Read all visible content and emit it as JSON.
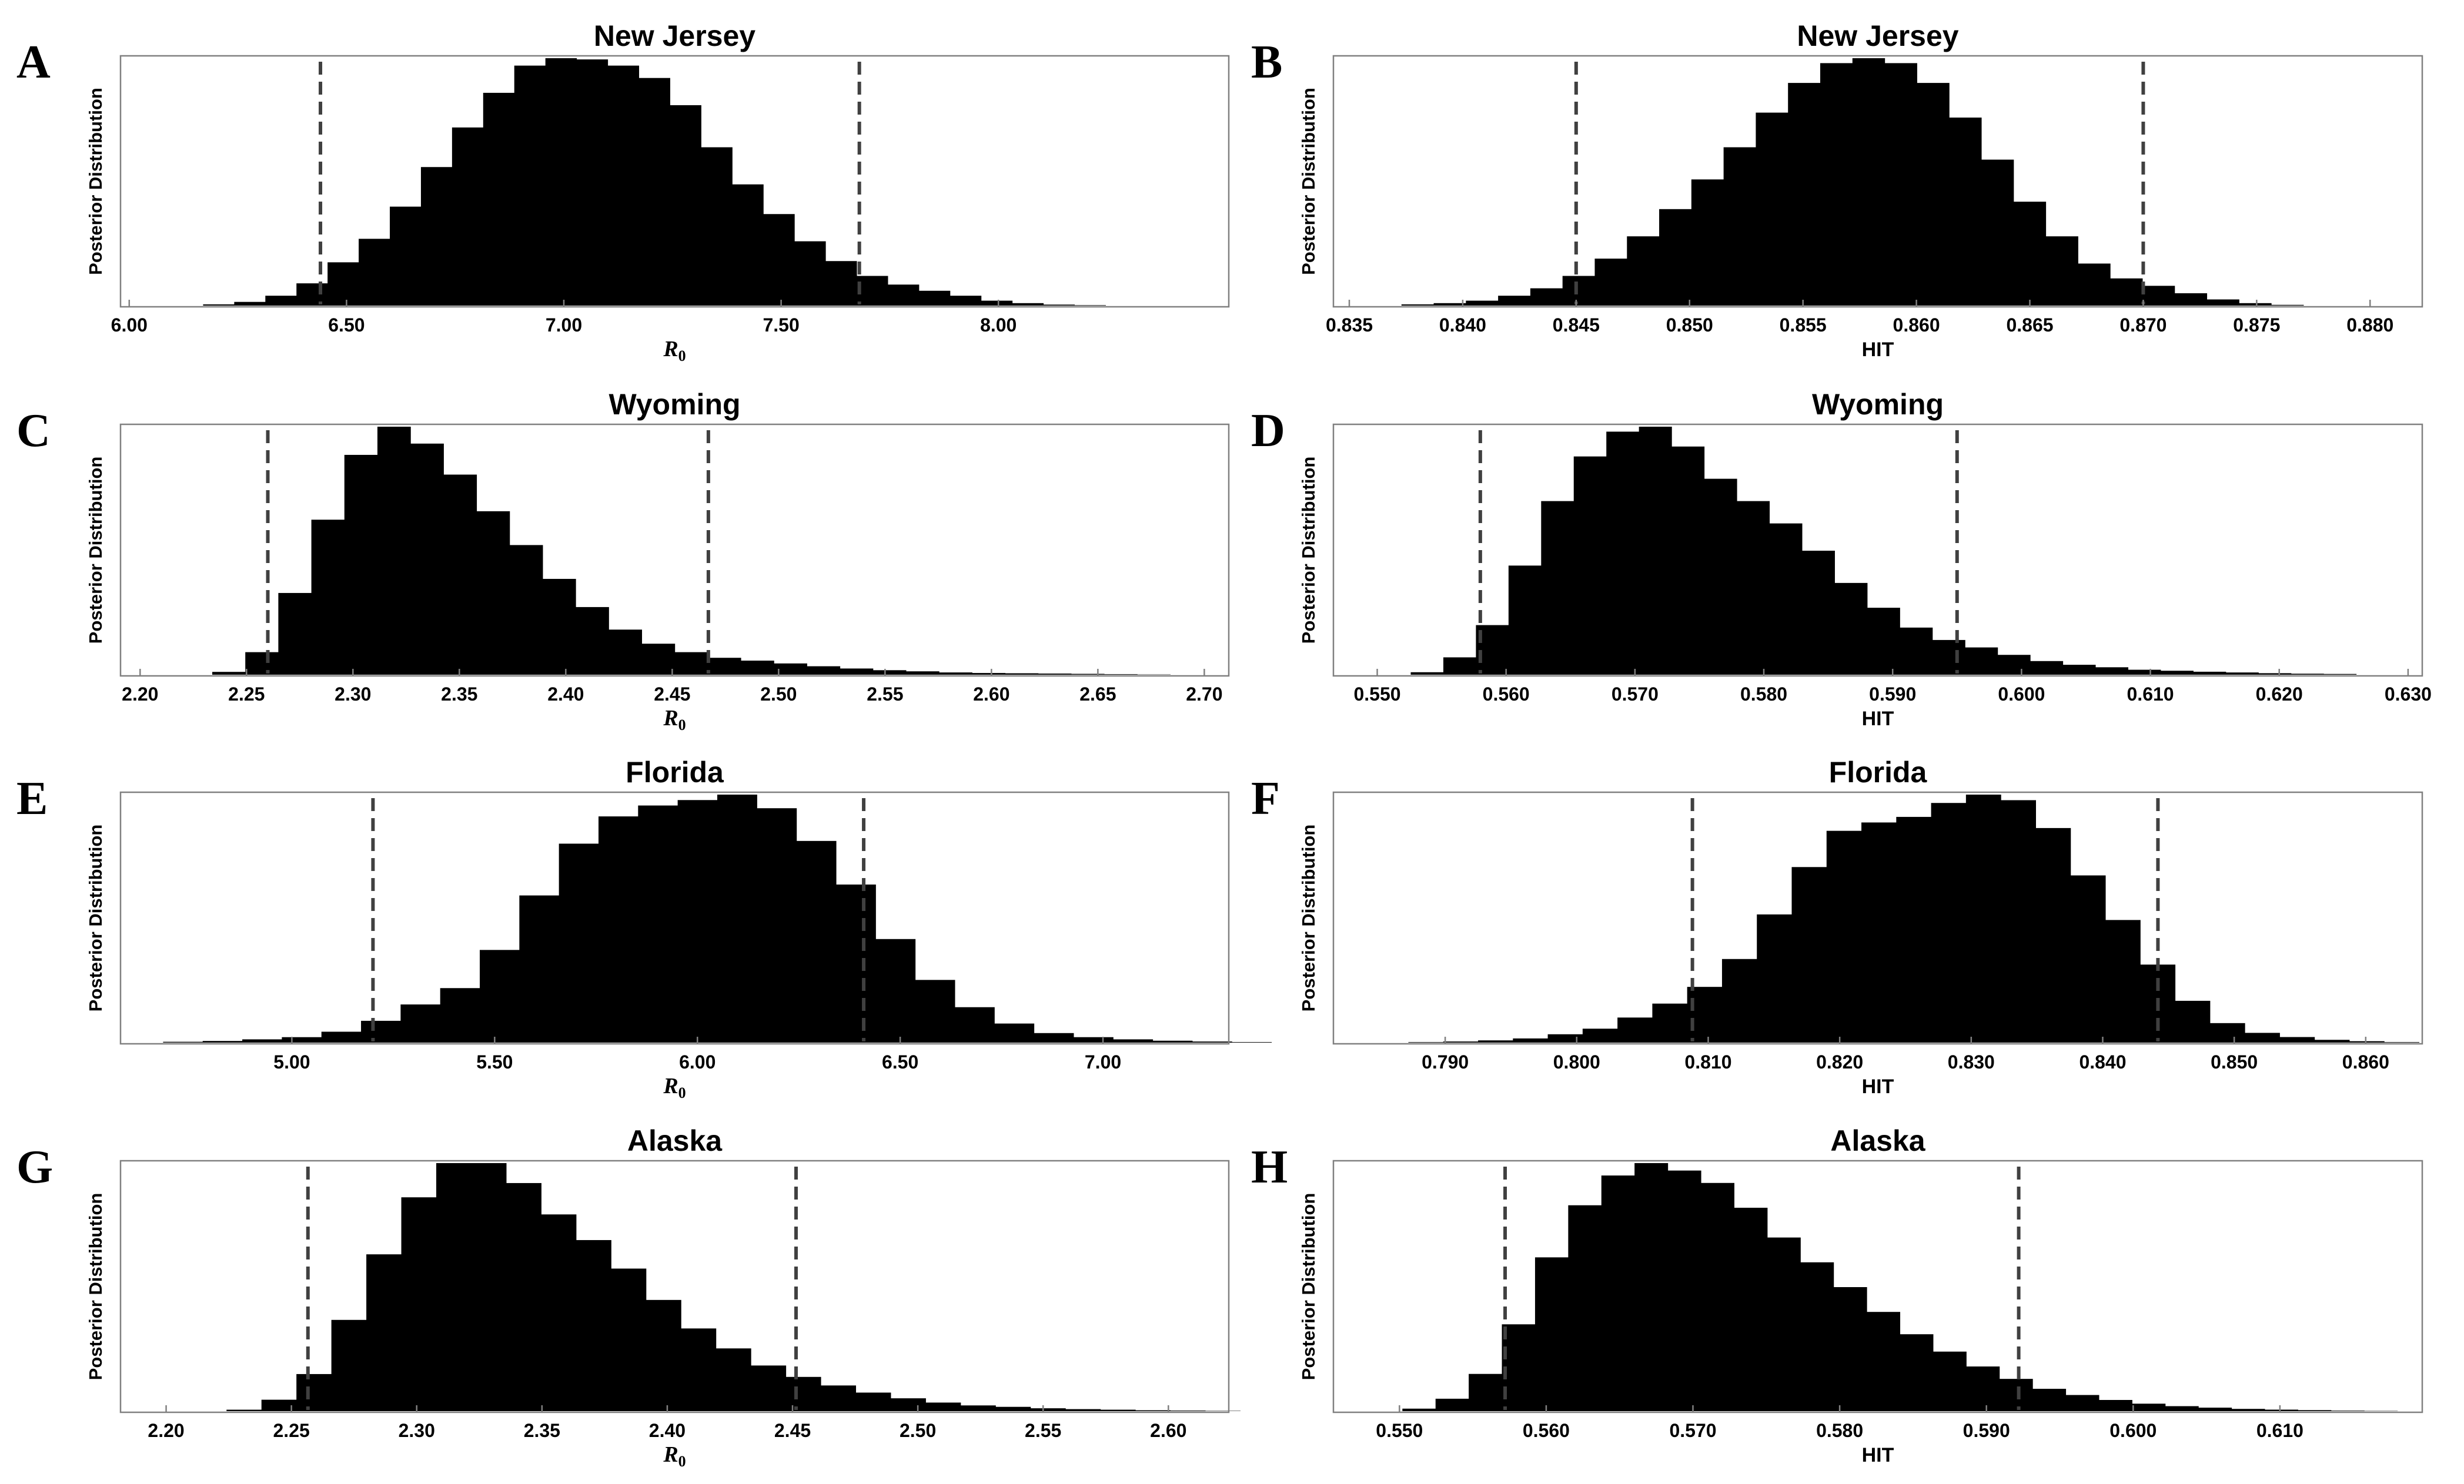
{
  "chart_data": [
    {
      "type": "bar",
      "panel": "A",
      "title": "New Jersey",
      "xlabel": "R",
      "xlabel_sub": "0",
      "ylabel": "Posterior Distribution",
      "xlim": [
        5.98,
        8.53
      ],
      "xticks": [
        6.0,
        6.5,
        7.0,
        7.5,
        8.0
      ],
      "xtick_labels": [
        "6.00",
        "6.50",
        "7.00",
        "7.50",
        "8.00"
      ],
      "ci": [
        6.44,
        7.68
      ],
      "bin_start": 6.17,
      "bin_width": 0.0716,
      "values": [
        0.005,
        0.015,
        0.04,
        0.09,
        0.175,
        0.27,
        0.4,
        0.56,
        0.72,
        0.86,
        0.97,
        1.0,
        0.995,
        0.97,
        0.92,
        0.81,
        0.64,
        0.49,
        0.37,
        0.26,
        0.18,
        0.12,
        0.085,
        0.06,
        0.04,
        0.02,
        0.01,
        0.004,
        0.002
      ]
    },
    {
      "type": "bar",
      "panel": "B",
      "title": "New Jersey",
      "xlabel": "HIT",
      "xlabel_sub": "",
      "ylabel": "Posterior Distribution",
      "xlim": [
        0.8343,
        0.8823
      ],
      "xticks": [
        0.835,
        0.84,
        0.845,
        0.85,
        0.855,
        0.86,
        0.865,
        0.87,
        0.875,
        0.88
      ],
      "xtick_labels": [
        "0.835",
        "0.840",
        "0.845",
        "0.850",
        "0.855",
        "0.860",
        "0.865",
        "0.870",
        "0.875",
        "0.880"
      ],
      "ci": [
        0.845,
        0.87
      ],
      "bin_start": 0.8373,
      "bin_width": 0.00142,
      "values": [
        0.005,
        0.01,
        0.02,
        0.04,
        0.07,
        0.12,
        0.19,
        0.28,
        0.39,
        0.51,
        0.64,
        0.78,
        0.9,
        0.98,
        1.0,
        0.98,
        0.9,
        0.76,
        0.59,
        0.42,
        0.28,
        0.17,
        0.11,
        0.08,
        0.05,
        0.025,
        0.01,
        0.003
      ]
    },
    {
      "type": "bar",
      "panel": "C",
      "title": "Wyoming",
      "xlabel": "R",
      "xlabel_sub": "0",
      "ylabel": "Posterior Distribution",
      "xlim": [
        2.1908,
        2.7115
      ],
      "xticks": [
        2.2,
        2.25,
        2.3,
        2.35,
        2.4,
        2.45,
        2.5,
        2.55,
        2.6,
        2.65,
        2.7
      ],
      "xtick_labels": [
        "2.20",
        "2.25",
        "2.30",
        "2.35",
        "2.40",
        "2.45",
        "2.50",
        "2.55",
        "2.60",
        "2.65",
        "2.70"
      ],
      "ci": [
        2.26,
        2.467
      ],
      "bin_start": 2.2339,
      "bin_width": 0.01552,
      "values": [
        0.01,
        0.08,
        0.29,
        0.55,
        0.78,
        0.88,
        0.82,
        0.71,
        0.58,
        0.46,
        0.34,
        0.24,
        0.16,
        0.11,
        0.08,
        0.06,
        0.05,
        0.04,
        0.03,
        0.022,
        0.016,
        0.012,
        0.008,
        0.006,
        0.005,
        0.004,
        0.003,
        0.002,
        0.001
      ]
    },
    {
      "type": "bar",
      "panel": "D",
      "title": "Wyoming",
      "xlabel": "HIT",
      "xlabel_sub": "",
      "ylabel": "Posterior Distribution",
      "xlim": [
        0.5466,
        0.6311
      ],
      "xticks": [
        0.55,
        0.56,
        0.57,
        0.58,
        0.59,
        0.6,
        0.61,
        0.62,
        0.63
      ],
      "xtick_labels": [
        "0.550",
        "0.560",
        "0.570",
        "0.580",
        "0.590",
        "0.600",
        "0.610",
        "0.620",
        "0.630"
      ],
      "ci": [
        0.558,
        0.595
      ],
      "bin_start": 0.5526,
      "bin_width": 0.00253,
      "values": [
        0.01,
        0.07,
        0.2,
        0.44,
        0.7,
        0.88,
        0.98,
        1.0,
        0.92,
        0.79,
        0.7,
        0.61,
        0.5,
        0.37,
        0.27,
        0.19,
        0.14,
        0.11,
        0.08,
        0.055,
        0.04,
        0.03,
        0.02,
        0.016,
        0.012,
        0.009,
        0.006,
        0.004,
        0.003
      ]
    },
    {
      "type": "bar",
      "panel": "E",
      "title": "Florida",
      "xlabel": "R",
      "xlabel_sub": "0",
      "ylabel": "Posterior Distribution",
      "xlim": [
        4.5775,
        7.3102
      ],
      "xticks": [
        5.0,
        5.5,
        6.0,
        6.5,
        7.0
      ],
      "xtick_labels": [
        "5.00",
        "5.50",
        "6.00",
        "6.50",
        "7.00"
      ],
      "ci": [
        5.2,
        6.41
      ],
      "bin_start": 4.6825,
      "bin_width": 0.0976,
      "values": [
        0.003,
        0.006,
        0.012,
        0.02,
        0.04,
        0.08,
        0.14,
        0.2,
        0.34,
        0.54,
        0.73,
        0.83,
        0.87,
        0.89,
        0.91,
        0.86,
        0.74,
        0.58,
        0.38,
        0.23,
        0.13,
        0.07,
        0.035,
        0.02,
        0.012,
        0.007,
        0.004,
        0.002
      ]
    },
    {
      "type": "bar",
      "panel": "F",
      "title": "Florida",
      "xlabel": "HIT",
      "xlabel_sub": "",
      "ylabel": "Posterior Distribution",
      "xlim": [
        0.7815,
        0.8643
      ],
      "xticks": [
        0.79,
        0.8,
        0.81,
        0.82,
        0.83,
        0.84,
        0.85,
        0.86
      ],
      "xtick_labels": [
        "0.790",
        "0.800",
        "0.810",
        "0.820",
        "0.830",
        "0.840",
        "0.850",
        "0.860"
      ],
      "ci": [
        0.8088,
        0.8442
      ],
      "bin_start": 0.7872,
      "bin_width": 0.00265,
      "values": [
        0.002,
        0.004,
        0.008,
        0.015,
        0.03,
        0.05,
        0.09,
        0.14,
        0.2,
        0.3,
        0.46,
        0.63,
        0.76,
        0.79,
        0.81,
        0.86,
        0.89,
        0.87,
        0.77,
        0.6,
        0.44,
        0.28,
        0.15,
        0.07,
        0.035,
        0.02,
        0.01,
        0.005,
        0.002
      ]
    },
    {
      "type": "bar",
      "panel": "G",
      "title": "Alaska",
      "xlabel": "R",
      "xlabel_sub": "0",
      "ylabel": "Posterior Distribution",
      "xlim": [
        2.1818,
        2.6241
      ],
      "xticks": [
        2.2,
        2.25,
        2.3,
        2.35,
        2.4,
        2.45,
        2.5,
        2.55,
        2.6
      ],
      "xtick_labels": [
        "2.20",
        "2.25",
        "2.30",
        "2.35",
        "2.40",
        "2.45",
        "2.50",
        "2.55",
        "2.60"
      ],
      "ci": [
        2.2566,
        2.4514
      ],
      "bin_start": 2.2241,
      "bin_width": 0.01395,
      "values": [
        0.005,
        0.04,
        0.13,
        0.32,
        0.55,
        0.75,
        0.87,
        0.87,
        0.8,
        0.69,
        0.6,
        0.5,
        0.39,
        0.29,
        0.22,
        0.16,
        0.12,
        0.09,
        0.065,
        0.045,
        0.03,
        0.02,
        0.015,
        0.01,
        0.007,
        0.005,
        0.003,
        0.002,
        0.001
      ]
    },
    {
      "type": "bar",
      "panel": "H",
      "title": "Alaska",
      "xlabel": "HIT",
      "xlabel_sub": "",
      "ylabel": "Posterior Distribution",
      "xlim": [
        0.5455,
        0.6197
      ],
      "xticks": [
        0.55,
        0.56,
        0.57,
        0.58,
        0.59,
        0.6,
        0.61
      ],
      "xtick_labels": [
        "0.550",
        "0.560",
        "0.570",
        "0.580",
        "0.590",
        "0.600",
        "0.610"
      ],
      "ci": [
        0.5572,
        0.5922
      ],
      "bin_start": 0.5502,
      "bin_width": 0.00226,
      "values": [
        0.01,
        0.05,
        0.15,
        0.35,
        0.62,
        0.83,
        0.95,
        1.0,
        0.97,
        0.92,
        0.82,
        0.7,
        0.6,
        0.5,
        0.4,
        0.31,
        0.24,
        0.18,
        0.13,
        0.09,
        0.065,
        0.045,
        0.03,
        0.02,
        0.014,
        0.009,
        0.006,
        0.004,
        0.002,
        0.001
      ]
    }
  ]
}
